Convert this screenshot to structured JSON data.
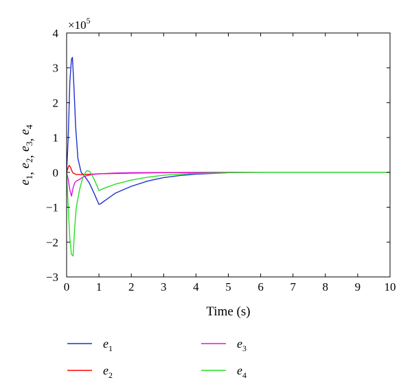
{
  "chart_data": {
    "type": "line",
    "title": "",
    "xlabel": "Time (s)",
    "ylabel_parts": [
      {
        "base": "e",
        "sub": "1"
      },
      {
        "base": "e",
        "sub": "2"
      },
      {
        "base": "e",
        "sub": "3"
      },
      {
        "base": "e",
        "sub": "4"
      }
    ],
    "xlim": [
      0,
      10
    ],
    "ylim": [
      -3,
      4
    ],
    "y_multiplier": "×10",
    "y_multiplier_exp": "5",
    "xticks": [
      0,
      1,
      2,
      3,
      4,
      5,
      6,
      7,
      8,
      9,
      10
    ],
    "yticks": [
      -3,
      -2,
      -1,
      0,
      1,
      2,
      3,
      4
    ],
    "ytick_labels": [
      "−3",
      "−2",
      "−1",
      "0",
      "1",
      "2",
      "3",
      "4"
    ],
    "grid": false,
    "legend_position": "bottom",
    "series": [
      {
        "name_base": "e",
        "name_sub": "1",
        "color": "#1f2fd1",
        "x": [
          0,
          0.05,
          0.1,
          0.15,
          0.18,
          0.22,
          0.28,
          0.35,
          0.45,
          0.55,
          0.7,
          0.85,
          1.0,
          1.05,
          1.2,
          1.5,
          2.0,
          2.5,
          3.0,
          3.5,
          4.0,
          4.5,
          5.0,
          5.2,
          6,
          7,
          8,
          9,
          10
        ],
        "y": [
          0,
          1.0,
          2.6,
          3.25,
          3.3,
          2.6,
          1.3,
          0.4,
          0.0,
          -0.1,
          -0.3,
          -0.6,
          -0.92,
          -0.9,
          -0.8,
          -0.6,
          -0.4,
          -0.25,
          -0.15,
          -0.09,
          -0.05,
          -0.03,
          -0.01,
          0,
          0,
          0,
          0,
          0,
          0
        ]
      },
      {
        "name_base": "e",
        "name_sub": "2",
        "color": "#ff0000",
        "x": [
          0,
          0.04,
          0.08,
          0.12,
          0.16,
          0.2,
          0.3,
          0.5,
          0.8,
          1.0,
          1.5,
          2.0,
          3.0,
          4.0,
          5.0,
          6,
          7,
          8,
          9,
          10
        ],
        "y": [
          0,
          0.12,
          0.2,
          0.15,
          0.05,
          -0.02,
          -0.06,
          -0.06,
          -0.05,
          -0.04,
          -0.03,
          -0.02,
          -0.01,
          -0.005,
          0,
          0,
          0,
          0,
          0,
          0
        ]
      },
      {
        "name_base": "e",
        "name_sub": "3",
        "color": "#e010e0",
        "x": [
          0,
          0.05,
          0.1,
          0.15,
          0.2,
          0.25,
          0.3,
          0.4,
          0.5,
          0.6,
          0.8,
          1.0,
          1.5,
          2.0,
          3.0,
          4.0,
          5.0,
          6,
          7,
          8,
          9,
          10
        ],
        "y": [
          0,
          -0.2,
          -0.5,
          -0.68,
          -0.45,
          -0.3,
          -0.25,
          -0.2,
          -0.14,
          -0.1,
          -0.06,
          -0.04,
          -0.02,
          -0.01,
          -0.005,
          0,
          0,
          0,
          0,
          0,
          0,
          0
        ]
      },
      {
        "name_base": "e",
        "name_sub": "4",
        "color": "#22e022",
        "x": [
          0,
          0.05,
          0.1,
          0.15,
          0.2,
          0.25,
          0.3,
          0.4,
          0.5,
          0.6,
          0.65,
          0.72,
          0.8,
          0.9,
          1.0,
          1.05,
          1.2,
          1.5,
          2.0,
          2.5,
          3.0,
          3.5,
          4.0,
          5.0,
          6,
          7,
          8,
          9,
          10
        ],
        "y": [
          0,
          -1.0,
          -1.9,
          -2.35,
          -2.4,
          -1.6,
          -1.0,
          -0.5,
          -0.15,
          0.03,
          0.05,
          0.02,
          -0.1,
          -0.3,
          -0.52,
          -0.5,
          -0.44,
          -0.34,
          -0.22,
          -0.14,
          -0.08,
          -0.05,
          -0.03,
          -0.01,
          0,
          0,
          0,
          0,
          0
        ]
      }
    ]
  }
}
